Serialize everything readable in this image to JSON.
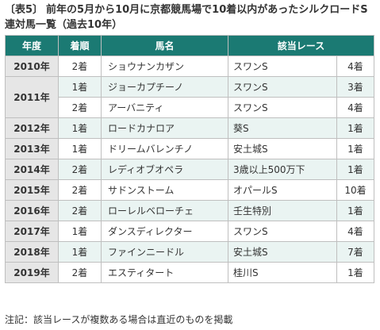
{
  "caption": {
    "tag": "〔表5〕",
    "text": "前年の5月から10月に京都競馬場で10着以内があったシルクロードS連対馬一覧（過去10年）"
  },
  "headers": {
    "year": "年度",
    "position": "着順",
    "horse": "馬名",
    "race": "該当レース"
  },
  "rows": [
    {
      "year": "2010年",
      "position": "2着",
      "horse": "ショウナンカザン",
      "race": "スワンS",
      "result": "4着"
    },
    {
      "year": "2011年",
      "position": "1着",
      "horse": "ジョーカプチーノ",
      "race": "スワンS",
      "result": "3着"
    },
    {
      "position": "2着",
      "horse": "アーバニティ",
      "race": "スワンS",
      "result": "4着"
    },
    {
      "year": "2012年",
      "position": "1着",
      "horse": "ロードカナロア",
      "race": "葵S",
      "result": "1着"
    },
    {
      "year": "2013年",
      "position": "1着",
      "horse": "ドリームバレンチノ",
      "race": "安土城S",
      "result": "1着"
    },
    {
      "year": "2014年",
      "position": "2着",
      "horse": "レディオブオペラ",
      "race": "3歳以上500万下",
      "result": "1着"
    },
    {
      "year": "2015年",
      "position": "2着",
      "horse": "サドンストーム",
      "race": "オパールS",
      "result": "10着"
    },
    {
      "year": "2016年",
      "position": "2着",
      "horse": "ローレルベローチェ",
      "race": "壬生特別",
      "result": "1着"
    },
    {
      "year": "2017年",
      "position": "1着",
      "horse": "ダンスディレクター",
      "race": "スワンS",
      "result": "4着"
    },
    {
      "year": "2018年",
      "position": "1着",
      "horse": "ファインニードル",
      "race": "安土城S",
      "result": "7着"
    },
    {
      "year": "2019年",
      "position": "2着",
      "horse": "エスティタート",
      "race": "桂川S",
      "result": "1着"
    }
  ],
  "note": "注記：該当レースが複数ある場合は直近のものを掲載"
}
